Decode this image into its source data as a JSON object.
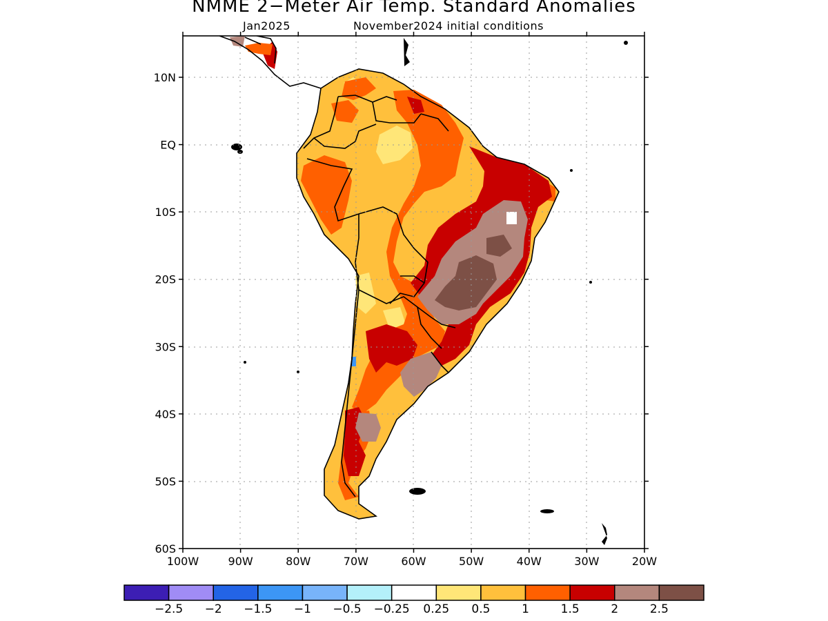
{
  "header": {
    "title": "NMME 2−Meter Air Temp. Standard Anomalies",
    "valid_month": "Jan2025",
    "init_conditions": "November2024 initial conditions"
  },
  "axes": {
    "lat_ticks": [
      "10N",
      "EQ",
      "10S",
      "20S",
      "30S",
      "40S",
      "50S",
      "60S"
    ],
    "lon_ticks": [
      "100W",
      "90W",
      "80W",
      "70W",
      "60W",
      "50W",
      "40W",
      "30W",
      "20W"
    ]
  },
  "legend": {
    "colors": [
      "#3c1eb4",
      "#a08cf5",
      "#2364e6",
      "#3c96f5",
      "#78b4fa",
      "#b4f0fa",
      "#ffffff",
      "#ffe678",
      "#ffc03c",
      "#ff6000",
      "#c80000",
      "#b4877d",
      "#7d5046"
    ],
    "labels": [
      "−2.5",
      "−2",
      "−1.5",
      "−1",
      "−0.5",
      "−0.25",
      "0.25",
      "0.5",
      "1",
      "1.5",
      "2",
      "2.5"
    ]
  },
  "map": {
    "region": "South America",
    "category_colors": {
      "lt_0.5": "#ffe678",
      "0.5_1": "#ffc03c",
      "1_1.5": "#ff6000",
      "1.5_2": "#c80000",
      "2_2.5": "#b4877d",
      "gt_2.5": "#7d5046",
      "neg": "#3c96f5"
    }
  }
}
